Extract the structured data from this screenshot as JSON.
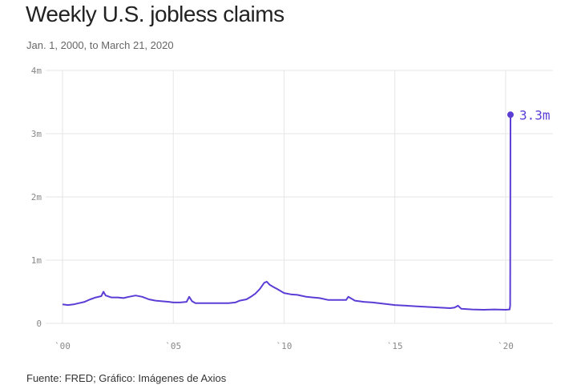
{
  "header": {
    "title": "Weekly U.S. jobless claims",
    "subtitle": "Jan. 1, 2000, to March 21, 2020"
  },
  "footer": {
    "source": "Fuente: FRED; Gráfico: Imágenes de Axios"
  },
  "colors": {
    "line": "#5b3dd6",
    "grid": "#e6e6e6",
    "tick_text": "#888888",
    "title": "#222222"
  },
  "chart_data": {
    "type": "line",
    "title": "Weekly U.S. jobless claims",
    "subtitle": "Jan. 1, 2000, to March 21, 2020",
    "xlabel": "",
    "ylabel": "",
    "xlim": [
      2000.0,
      2020.22
    ],
    "ylim": [
      0,
      4000000
    ],
    "grid": true,
    "x_ticks": [
      2000,
      2005,
      2010,
      2015,
      2020
    ],
    "x_tick_labels": [
      "`00",
      "`05",
      "`10",
      "`15",
      "`20"
    ],
    "y_ticks": [
      0,
      1000000,
      2000000,
      3000000,
      4000000
    ],
    "y_tick_labels": [
      "0",
      "1m",
      "2m",
      "3m",
      "4m"
    ],
    "series": [
      {
        "x": [
          2000.0,
          2000.25,
          2000.5,
          2000.75,
          2001.0,
          2001.25,
          2001.5,
          2001.75,
          2001.85,
          2001.95,
          2002.2,
          2002.5,
          2002.75,
          2003.0,
          2003.3,
          2003.6,
          2003.9,
          2004.2,
          2004.5,
          2004.8,
          2005.0,
          2005.3,
          2005.6,
          2005.72,
          2005.85,
          2006.0,
          2006.3,
          2006.6,
          2006.9,
          2007.2,
          2007.5,
          2007.8,
          2008.0,
          2008.3,
          2008.5,
          2008.7,
          2008.9,
          2009.1,
          2009.22,
          2009.35,
          2009.5,
          2009.7,
          2010.0,
          2010.3,
          2010.6,
          2011.0,
          2011.3,
          2011.6,
          2012.0,
          2012.4,
          2012.8,
          2012.9,
          2013.2,
          2013.6,
          2014.0,
          2014.5,
          2015.0,
          2015.5,
          2016.0,
          2016.5,
          2017.0,
          2017.5,
          2017.7,
          2017.85,
          2018.0,
          2018.5,
          2019.0,
          2019.5,
          2020.0,
          2020.18,
          2020.205,
          2020.22
        ],
        "values": [
          300000,
          290000,
          300000,
          320000,
          340000,
          380000,
          410000,
          430000,
          500000,
          440000,
          410000,
          410000,
          400000,
          420000,
          440000,
          420000,
          380000,
          360000,
          350000,
          340000,
          330000,
          330000,
          340000,
          420000,
          350000,
          320000,
          320000,
          320000,
          320000,
          320000,
          320000,
          330000,
          360000,
          380000,
          420000,
          470000,
          540000,
          640000,
          660000,
          610000,
          580000,
          540000,
          480000,
          460000,
          450000,
          420000,
          410000,
          400000,
          370000,
          370000,
          370000,
          420000,
          360000,
          340000,
          330000,
          310000,
          290000,
          280000,
          270000,
          260000,
          250000,
          240000,
          250000,
          280000,
          230000,
          220000,
          215000,
          220000,
          215000,
          220000,
          280000,
          3300000
        ]
      }
    ],
    "annotations": [
      {
        "text": "3.3m",
        "x": 2020.22,
        "y": 3300000
      }
    ]
  }
}
